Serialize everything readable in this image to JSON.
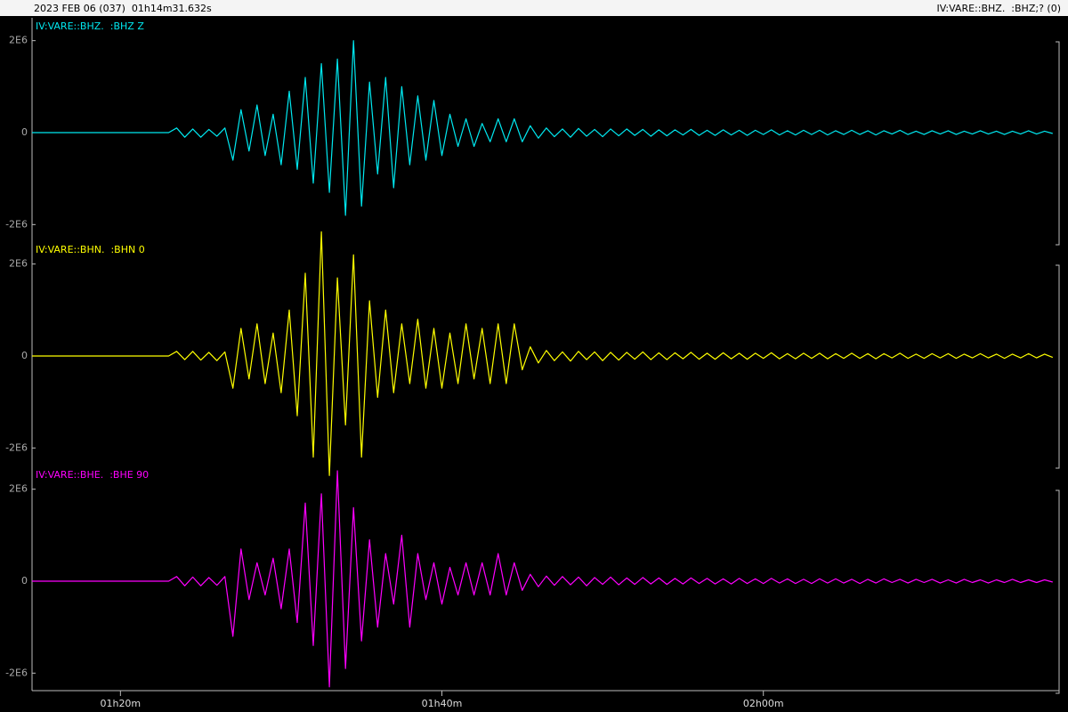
{
  "header": {
    "left": "2023 FEB 06 (037)  01h14m31.632s",
    "right": "IV:VARE::BHZ.  :BHZ;? (0)"
  },
  "chart_data": [
    {
      "type": "line",
      "title": "IV:VARE::BHZ.  :BHZ Z",
      "color": "#00e8f0",
      "x": [
        14.5,
        23.0,
        23.5,
        24.0,
        24.5,
        25.0,
        25.5,
        26.0,
        26.5,
        27.0,
        27.5,
        28.0,
        28.5,
        29.0,
        29.5,
        30.0,
        30.5,
        31.0,
        31.5,
        32.0,
        32.5,
        33.0,
        33.5,
        34.0,
        34.5,
        35.0,
        35.5,
        36.0,
        36.5,
        37.0,
        37.5,
        38.0,
        38.5,
        39.0,
        39.5,
        40.0,
        40.5,
        41.0,
        41.5,
        42.0,
        42.5,
        43.0,
        43.5,
        44.0,
        44.5,
        45.0,
        45.5,
        46.0,
        46.5,
        47.0,
        47.5,
        48.0,
        48.5,
        49.0,
        49.5,
        50.0,
        50.5,
        51.0,
        51.5,
        52.0,
        52.5,
        53.0,
        53.5,
        54.0,
        54.5,
        55.0,
        55.5,
        56.0,
        56.5,
        57.0,
        57.5,
        58.0,
        58.5,
        59.0,
        59.5,
        60.0,
        60.5,
        61.0,
        61.5,
        62.0,
        62.5,
        63.0,
        63.5,
        64.0,
        64.5,
        65.0,
        65.5,
        66.0,
        66.5,
        67.0,
        67.5,
        68.0,
        68.5,
        69.0,
        69.5,
        70.0,
        70.5,
        71.0,
        71.5,
        72.0,
        72.5,
        73.0,
        73.5,
        74.0,
        74.5,
        75.0,
        75.5,
        76.0,
        76.5,
        77.0,
        77.5,
        78.0
      ],
      "values": [
        0,
        0,
        100000.0,
        -100000.0,
        80000.0,
        -100000.0,
        70000.0,
        -80000.0,
        100000.0,
        -600000.0,
        500000.0,
        -400000.0,
        600000.0,
        -500000.0,
        400000.0,
        -700000.0,
        900000.0,
        -800000.0,
        1200000.0,
        -1100000.0,
        1500000.0,
        -1300000.0,
        1600000.0,
        -1800000.0,
        2000000.0,
        -1600000.0,
        1100000.0,
        -900000.0,
        1200000.0,
        -1200000.0,
        1000000.0,
        -700000.0,
        800000.0,
        -600000.0,
        700000.0,
        -500000.0,
        400000.0,
        -300000.0,
        300000.0,
        -300000.0,
        200000.0,
        -200000.0,
        300000.0,
        -200000.0,
        300000.0,
        -200000.0,
        150000.0,
        -120000.0,
        100000.0,
        -90000.0,
        80000.0,
        -100000.0,
        90000.0,
        -80000.0,
        70000.0,
        -90000.0,
        80000.0,
        -70000.0,
        80000.0,
        -60000.0,
        70000.0,
        -80000.0,
        60000.0,
        -70000.0,
        60000.0,
        -50000.0,
        70000.0,
        -60000.0,
        50000.0,
        -60000.0,
        60000.0,
        -50000.0,
        50000.0,
        -60000.0,
        50000.0,
        -40000.0,
        60000.0,
        -50000.0,
        40000.0,
        -50000.0,
        50000.0,
        -40000.0,
        50000.0,
        -50000.0,
        40000.0,
        -40000.0,
        50000.0,
        -40000.0,
        40000.0,
        -50000.0,
        40000.0,
        -30000.0,
        50000.0,
        -40000.0,
        30000.0,
        -40000.0,
        40000.0,
        -30000.0,
        40000.0,
        -40000.0,
        30000.0,
        -30000.0,
        40000.0,
        -30000.0,
        30000.0,
        -40000.0,
        30000.0,
        -30000.0,
        40000.0,
        -30000.0,
        30000.0,
        -20000.0
      ],
      "xlim": [
        14.5,
        78.4
      ],
      "ylim": [
        -2400000,
        2400000
      ],
      "yticks": [
        {
          "value": 2000000,
          "label": "2E6"
        },
        0,
        {
          "value": -2000000,
          "label": "-2E6"
        }
      ]
    },
    {
      "type": "line",
      "title": "IV:VARE::BHN.  :BHN 0",
      "color": "#ffff00",
      "x": [
        14.5,
        23.0,
        23.5,
        24.0,
        24.5,
        25.0,
        25.5,
        26.0,
        26.5,
        27.0,
        27.5,
        28.0,
        28.5,
        29.0,
        29.5,
        30.0,
        30.5,
        31.0,
        31.5,
        32.0,
        32.5,
        33.0,
        33.5,
        34.0,
        34.5,
        35.0,
        35.5,
        36.0,
        36.5,
        37.0,
        37.5,
        38.0,
        38.5,
        39.0,
        39.5,
        40.0,
        40.5,
        41.0,
        41.5,
        42.0,
        42.5,
        43.0,
        43.5,
        44.0,
        44.5,
        45.0,
        45.5,
        46.0,
        46.5,
        47.0,
        47.5,
        48.0,
        48.5,
        49.0,
        49.5,
        50.0,
        50.5,
        51.0,
        51.5,
        52.0,
        52.5,
        53.0,
        53.5,
        54.0,
        54.5,
        55.0,
        55.5,
        56.0,
        56.5,
        57.0,
        57.5,
        58.0,
        58.5,
        59.0,
        59.5,
        60.0,
        60.5,
        61.0,
        61.5,
        62.0,
        62.5,
        63.0,
        63.5,
        64.0,
        64.5,
        65.0,
        65.5,
        66.0,
        66.5,
        67.0,
        67.5,
        68.0,
        68.5,
        69.0,
        69.5,
        70.0,
        70.5,
        71.0,
        71.5,
        72.0,
        72.5,
        73.0,
        73.5,
        74.0,
        74.5,
        75.0,
        75.5,
        76.0,
        76.5,
        77.0,
        77.5,
        78.0
      ],
      "values": [
        0,
        0,
        100000.0,
        -80000.0,
        100000.0,
        -90000.0,
        80000.0,
        -100000.0,
        90000.0,
        -700000.0,
        600000.0,
        -500000.0,
        700000.0,
        -600000.0,
        500000.0,
        -800000.0,
        1000000.0,
        -1300000.0,
        1800000.0,
        -2200000.0,
        2700000.0,
        -2600000.0,
        1700000.0,
        -1500000.0,
        2200000.0,
        -2200000.0,
        1200000.0,
        -900000.0,
        1000000.0,
        -800000.0,
        700000.0,
        -600000.0,
        800000.0,
        -700000.0,
        600000.0,
        -700000.0,
        500000.0,
        -600000.0,
        700000.0,
        -500000.0,
        600000.0,
        -600000.0,
        700000.0,
        -600000.0,
        700000.0,
        -300000.0,
        200000.0,
        -150000.0,
        120000.0,
        -100000.0,
        90000.0,
        -110000.0,
        100000.0,
        -80000.0,
        90000.0,
        -100000.0,
        80000.0,
        -90000.0,
        80000.0,
        -70000.0,
        90000.0,
        -80000.0,
        70000.0,
        -80000.0,
        70000.0,
        -60000.0,
        80000.0,
        -70000.0,
        60000.0,
        -70000.0,
        70000.0,
        -60000.0,
        60000.0,
        -70000.0,
        60000.0,
        -50000.0,
        70000.0,
        -60000.0,
        50000.0,
        -60000.0,
        60000.0,
        -50000.0,
        60000.0,
        -60000.0,
        50000.0,
        -50000.0,
        60000.0,
        -50000.0,
        50000.0,
        -60000.0,
        50000.0,
        -40000.0,
        60000.0,
        -50000.0,
        40000.0,
        -50000.0,
        50000.0,
        -40000.0,
        50000.0,
        -50000.0,
        40000.0,
        -40000.0,
        50000.0,
        -40000.0,
        40000.0,
        -50000.0,
        40000.0,
        -40000.0,
        50000.0,
        -40000.0,
        40000.0,
        -30000.0
      ],
      "xlim": [
        14.5,
        78.4
      ],
      "ylim": [
        -2400000,
        2400000
      ],
      "yticks": [
        {
          "value": 2000000,
          "label": "2E6"
        },
        0,
        {
          "value": -2000000,
          "label": "-2E6"
        }
      ]
    },
    {
      "type": "line",
      "title": "IV:VARE::BHE.  :BHE 90",
      "color": "#ff00ff",
      "x": [
        14.5,
        23.0,
        23.5,
        24.0,
        24.5,
        25.0,
        25.5,
        26.0,
        26.5,
        27.0,
        27.5,
        28.0,
        28.5,
        29.0,
        29.5,
        30.0,
        30.5,
        31.0,
        31.5,
        32.0,
        32.5,
        33.0,
        33.5,
        34.0,
        34.5,
        35.0,
        35.5,
        36.0,
        36.5,
        37.0,
        37.5,
        38.0,
        38.5,
        39.0,
        39.5,
        40.0,
        40.5,
        41.0,
        41.5,
        42.0,
        42.5,
        43.0,
        43.5,
        44.0,
        44.5,
        45.0,
        45.5,
        46.0,
        46.5,
        47.0,
        47.5,
        48.0,
        48.5,
        49.0,
        49.5,
        50.0,
        50.5,
        51.0,
        51.5,
        52.0,
        52.5,
        53.0,
        53.5,
        54.0,
        54.5,
        55.0,
        55.5,
        56.0,
        56.5,
        57.0,
        57.5,
        58.0,
        58.5,
        59.0,
        59.5,
        60.0,
        60.5,
        61.0,
        61.5,
        62.0,
        62.5,
        63.0,
        63.5,
        64.0,
        64.5,
        65.0,
        65.5,
        66.0,
        66.5,
        67.0,
        67.5,
        68.0,
        68.5,
        69.0,
        69.5,
        70.0,
        70.5,
        71.0,
        71.5,
        72.0,
        72.5,
        73.0,
        73.5,
        74.0,
        74.5,
        75.0,
        75.5,
        76.0,
        76.5,
        77.0,
        77.5,
        78.0
      ],
      "values": [
        0,
        0,
        100000.0,
        -100000.0,
        90000.0,
        -100000.0,
        80000.0,
        -90000.0,
        100000.0,
        -1200000.0,
        700000.0,
        -400000.0,
        400000.0,
        -300000.0,
        500000.0,
        -600000.0,
        700000.0,
        -900000.0,
        1700000.0,
        -1400000.0,
        1900000.0,
        -2300000.0,
        2400000.0,
        -1900000.0,
        1600000.0,
        -1300000.0,
        900000.0,
        -1000000.0,
        600000.0,
        -500000.0,
        1000000.0,
        -1000000.0,
        600000.0,
        -400000.0,
        400000.0,
        -500000.0,
        300000.0,
        -300000.0,
        400000.0,
        -300000.0,
        400000.0,
        -300000.0,
        600000.0,
        -300000.0,
        400000.0,
        -200000.0,
        150000.0,
        -120000.0,
        110000.0,
        -90000.0,
        100000.0,
        -80000.0,
        90000.0,
        -100000.0,
        80000.0,
        -70000.0,
        90000.0,
        -80000.0,
        70000.0,
        -70000.0,
        80000.0,
        -60000.0,
        70000.0,
        -70000.0,
        60000.0,
        -60000.0,
        70000.0,
        -50000.0,
        60000.0,
        -60000.0,
        50000.0,
        -60000.0,
        60000.0,
        -50000.0,
        50000.0,
        -50000.0,
        60000.0,
        -40000.0,
        50000.0,
        -50000.0,
        40000.0,
        -50000.0,
        50000.0,
        -40000.0,
        50000.0,
        -40000.0,
        40000.0,
        -50000.0,
        40000.0,
        -40000.0,
        50000.0,
        -30000.0,
        40000.0,
        -40000.0,
        40000.0,
        -30000.0,
        40000.0,
        -40000.0,
        30000.0,
        -40000.0,
        40000.0,
        -30000.0,
        30000.0,
        -40000.0,
        30000.0,
        -30000.0,
        40000.0,
        -30000.0,
        30000.0,
        -30000.0,
        30000.0,
        -20000.0
      ],
      "xlim": [
        14.5,
        78.4
      ],
      "ylim": [
        -2400000,
        2400000
      ],
      "yticks": [
        {
          "value": 2000000,
          "label": "2E6"
        },
        0,
        {
          "value": -2000000,
          "label": "-2E6"
        }
      ],
      "xticks": [
        {
          "value": 20,
          "label": "01h20m"
        },
        {
          "value": 40,
          "label": "01h40m"
        },
        {
          "value": 60,
          "label": "02h00m"
        }
      ]
    }
  ]
}
